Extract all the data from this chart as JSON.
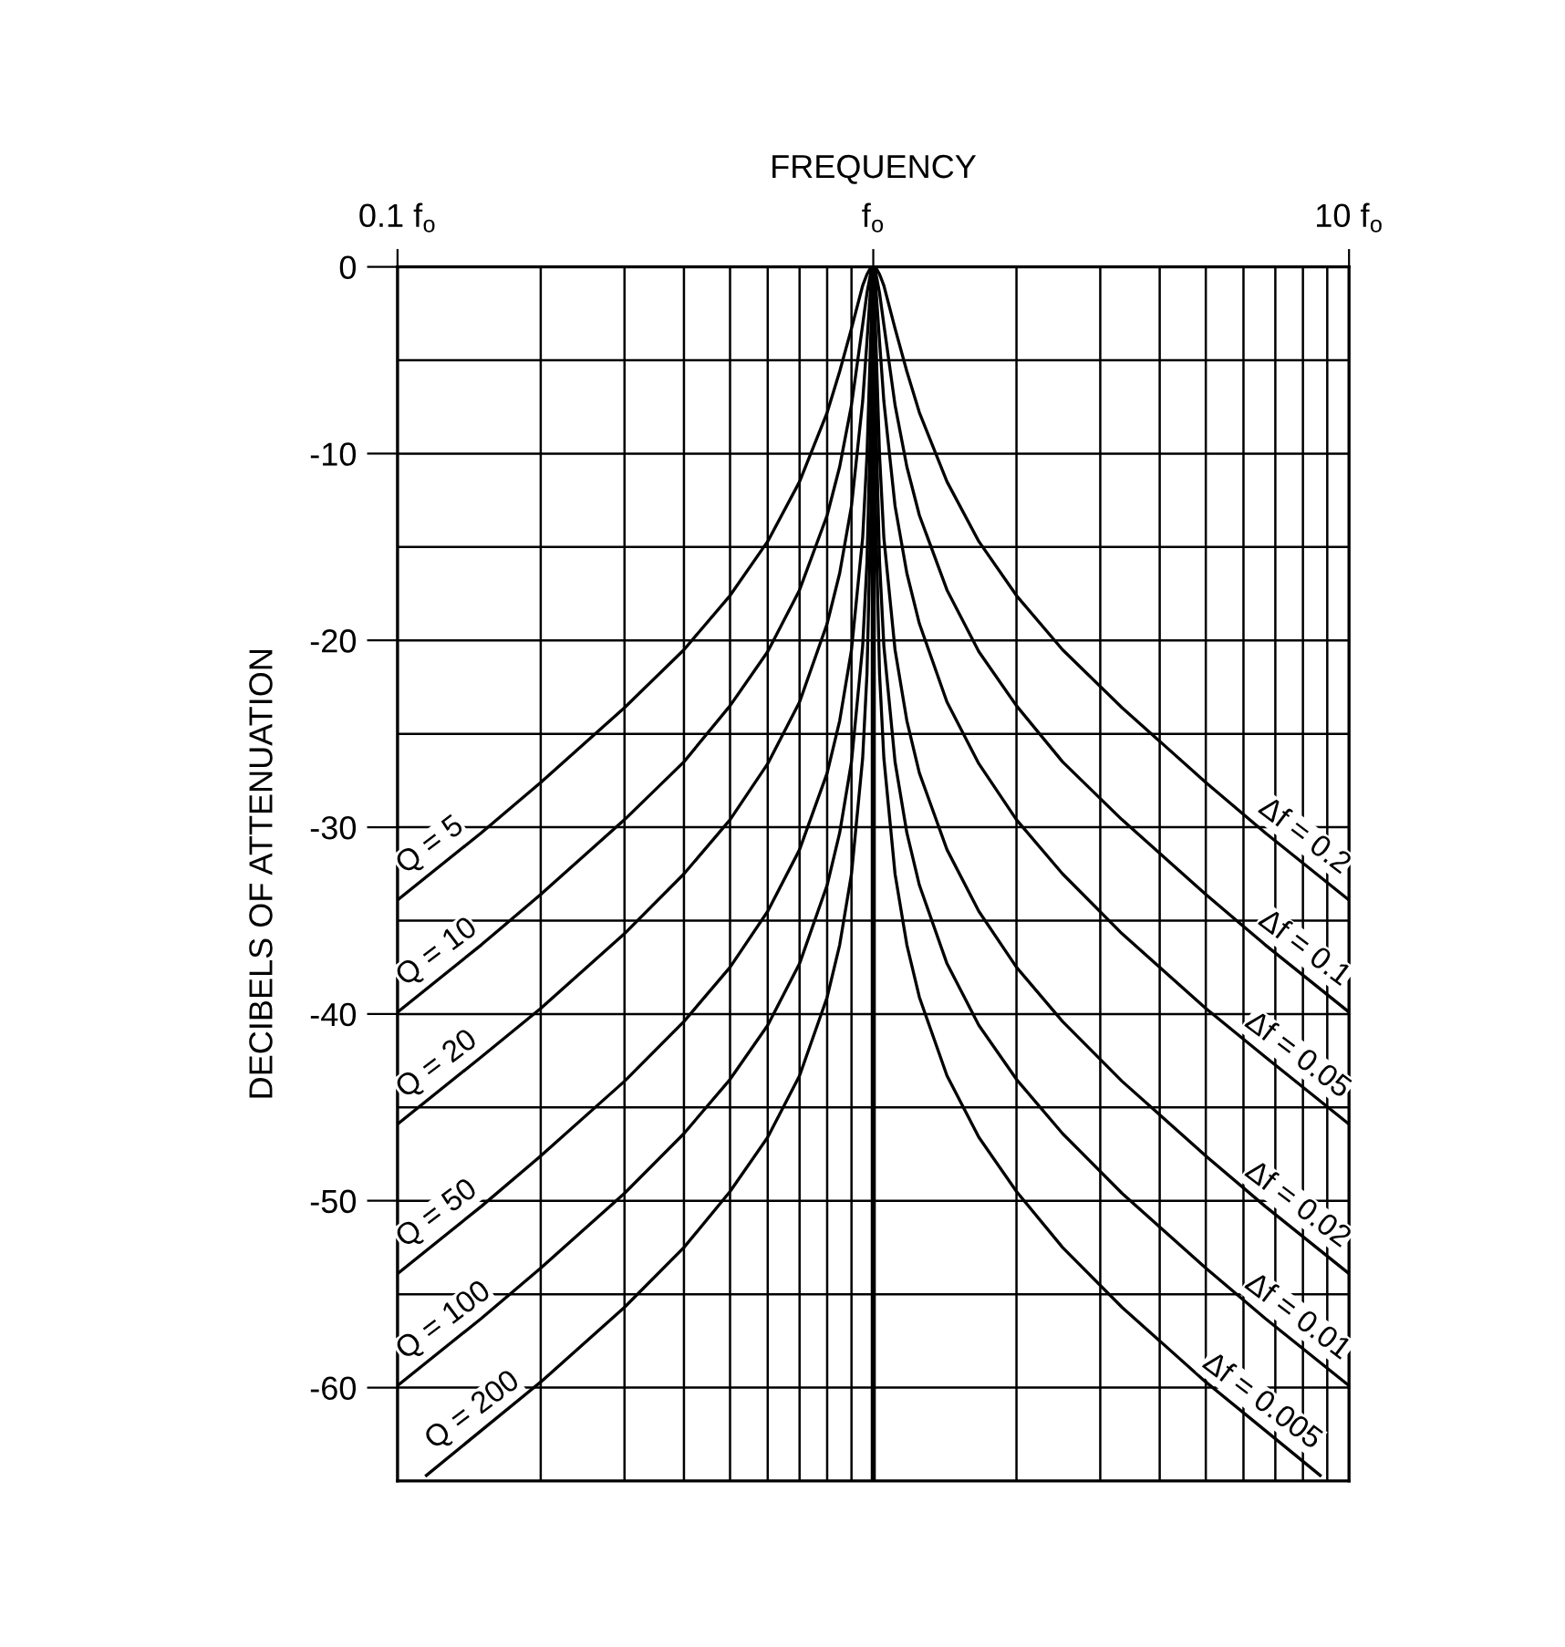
{
  "chart_data": {
    "type": "line",
    "xlabel": "FREQUENCY",
    "ylabel": "DECIBELS OF ATTENUATION",
    "log": "x",
    "xlim": [
      0.1,
      10
    ],
    "ylim": [
      -65,
      0
    ],
    "xticks": [
      {
        "value": 0.1,
        "label": "0.1 f$_{o}$"
      },
      {
        "value": 0.2,
        "label": null
      },
      {
        "value": 0.3,
        "label": null
      },
      {
        "value": 0.4,
        "label": null
      },
      {
        "value": 0.5,
        "label": null
      },
      {
        "value": 0.6,
        "label": null
      },
      {
        "value": 0.7,
        "label": null
      },
      {
        "value": 0.8,
        "label": null
      },
      {
        "value": 0.9,
        "label": null
      },
      {
        "value": 1,
        "label": "f$_{o}$"
      },
      {
        "value": 2,
        "label": null
      },
      {
        "value": 3,
        "label": null
      },
      {
        "value": 4,
        "label": null
      },
      {
        "value": 5,
        "label": null
      },
      {
        "value": 6,
        "label": null
      },
      {
        "value": 7,
        "label": null
      },
      {
        "value": 8,
        "label": null
      },
      {
        "value": 9,
        "label": null
      },
      {
        "value": 10,
        "label": "10 f$_{o}$"
      }
    ],
    "yticks": [
      0,
      {
        "value": -5,
        "label": null
      },
      -10,
      {
        "value": -15,
        "label": null
      },
      -20,
      {
        "value": -25,
        "label": null
      },
      -30,
      {
        "value": -35,
        "label": null
      },
      -40,
      {
        "value": -45,
        "label": null
      },
      -50,
      {
        "value": -55,
        "label": null
      },
      -60
    ],
    "grid": true,
    "ref_lines": [
      {
        "axis": "x",
        "value": 1,
        "label": null
      }
    ],
    "series": [
      {
        "color": "#000000",
        "x": [
          0.1,
          0.15,
          0.2,
          0.3,
          0.4,
          0.5,
          0.6,
          0.7,
          0.8,
          0.85,
          0.9,
          0.95,
          0.97,
          0.99,
          1,
          1.0101,
          1.0309,
          1.0526,
          1.1111,
          1.1765,
          1.25,
          1.4286,
          1.6667,
          2,
          2.5,
          3.333,
          5,
          6.667,
          10
        ],
        "values": [
          -33.9,
          -30.3,
          -27.6,
          -23.6,
          -20.5,
          -17.6,
          -14.7,
          -11.5,
          -7.8,
          -5.6,
          -3.3,
          -1.0,
          -0.4,
          0,
          0,
          0,
          -0.4,
          -1.0,
          -3.3,
          -5.6,
          -7.8,
          -11.5,
          -14.7,
          -17.6,
          -20.5,
          -23.6,
          -27.6,
          -30.3,
          -33.9
        ]
      },
      {
        "color": "#000000",
        "x": [
          0.1,
          0.15,
          0.2,
          0.3,
          0.4,
          0.5,
          0.6,
          0.7,
          0.8,
          0.85,
          0.9,
          0.95,
          0.97,
          0.99,
          1,
          1.0101,
          1.0309,
          1.0526,
          1.1111,
          1.1765,
          1.25,
          1.4286,
          1.6667,
          2,
          2.5,
          3.333,
          5,
          6.667,
          10
        ],
        "values": [
          -39.9,
          -36.3,
          -33.6,
          -29.6,
          -26.5,
          -23.5,
          -20.6,
          -17.3,
          -13.3,
          -10.7,
          -7.4,
          -3.1,
          -1.4,
          -0.2,
          0,
          -0.2,
          -1.4,
          -3.1,
          -7.4,
          -10.7,
          -13.3,
          -17.3,
          -20.6,
          -23.5,
          -26.5,
          -29.6,
          -33.6,
          -36.3,
          -39.9
        ]
      },
      {
        "color": "#000000",
        "x": [
          0.1,
          0.15,
          0.2,
          0.3,
          0.4,
          0.5,
          0.6,
          0.7,
          0.8,
          0.85,
          0.9,
          0.95,
          0.97,
          0.99,
          1,
          1.0101,
          1.0309,
          1.0526,
          1.1111,
          1.1765,
          1.25,
          1.4286,
          1.6667,
          2,
          2.5,
          3.333,
          5,
          6.667,
          10
        ],
        "values": [
          -45.9,
          -42.3,
          -39.7,
          -35.7,
          -32.5,
          -29.6,
          -26.6,
          -23.3,
          -19.1,
          -16.4,
          -12.8,
          -7.2,
          -4.0,
          -0.7,
          0,
          -0.7,
          -4.0,
          -7.2,
          -12.8,
          -16.4,
          -19.1,
          -23.3,
          -26.6,
          -29.6,
          -32.5,
          -35.7,
          -39.7,
          -42.3,
          -45.9
        ]
      },
      {
        "color": "#000000",
        "x": [
          0.1,
          0.15,
          0.2,
          0.3,
          0.4,
          0.5,
          0.6,
          0.7,
          0.8,
          0.85,
          0.9,
          0.95,
          0.97,
          0.99,
          1,
          1.0101,
          1.0309,
          1.0526,
          1.1111,
          1.1765,
          1.25,
          1.4286,
          1.6667,
          2,
          2.5,
          3.333,
          5,
          6.667,
          10
        ],
        "values": [
          -53.9,
          -50.3,
          -47.6,
          -43.6,
          -40.4,
          -37.5,
          -34.5,
          -31.2,
          -27.1,
          -24.3,
          -20.5,
          -14.5,
          -10.1,
          -3.0,
          0,
          -3.0,
          -10.1,
          -14.5,
          -20.5,
          -24.3,
          -27.1,
          -31.2,
          -34.5,
          -37.5,
          -40.4,
          -43.6,
          -47.6,
          -50.3,
          -53.9
        ]
      },
      {
        "color": "#000000",
        "x": [
          0.1,
          0.15,
          0.2,
          0.3,
          0.4,
          0.5,
          0.6,
          0.7,
          0.8,
          0.85,
          0.9,
          0.95,
          0.97,
          0.99,
          0.995,
          1,
          1.005,
          1.0101,
          1.0309,
          1.0526,
          1.1111,
          1.1765,
          1.25,
          1.4286,
          1.6667,
          2,
          2.5,
          3.333,
          5,
          6.667,
          10
        ],
        "values": [
          -59.9,
          -56.3,
          -53.6,
          -49.6,
          -46.4,
          -43.5,
          -40.6,
          -37.3,
          -33.1,
          -30.3,
          -26.5,
          -20.3,
          -15.8,
          -7.0,
          -3.0,
          0,
          -3.0,
          -7.0,
          -15.8,
          -20.3,
          -26.5,
          -30.3,
          -33.1,
          -37.3,
          -40.6,
          -43.5,
          -46.4,
          -49.6,
          -53.6,
          -56.3,
          -59.9
        ]
      },
      {
        "color": "#000000",
        "x": [
          0.115,
          0.15,
          0.2,
          0.3,
          0.4,
          0.5,
          0.6,
          0.7,
          0.8,
          0.85,
          0.9,
          0.95,
          0.97,
          0.99,
          0.995,
          0.998,
          1,
          1.002,
          1.005,
          1.0101,
          1.0309,
          1.0526,
          1.1111,
          1.1765,
          1.25,
          1.4286,
          1.6667,
          2,
          2.5,
          3.333,
          5,
          6.667,
          8.696
        ],
        "values": [
          -64.7,
          -62.3,
          -59.7,
          -55.7,
          -52.5,
          -49.5,
          -46.6,
          -43.3,
          -39.1,
          -36.3,
          -32.5,
          -26.3,
          -21.8,
          -12.4,
          -7.0,
          -2.2,
          0,
          -2.2,
          -7.0,
          -12.4,
          -21.8,
          -26.3,
          -32.5,
          -36.3,
          -39.1,
          -43.3,
          -46.6,
          -49.5,
          -52.5,
          -55.7,
          -59.7,
          -62.3,
          -64.7
        ]
      }
    ],
    "annotations": [
      {
        "text": "Q = 5",
        "x": 0.1,
        "y": -33.9
      },
      {
        "text": "Q = 10",
        "x": 0.1,
        "y": -39.9
      },
      {
        "text": "Q = 20",
        "x": 0.1,
        "y": -45.9
      },
      {
        "text": "Q = 50",
        "x": 0.1,
        "y": -53.9
      },
      {
        "text": "Q = 100",
        "x": 0.1,
        "y": -59.9
      },
      {
        "text": "Q = 200",
        "x": 0.115,
        "y": -64.7
      },
      {
        "text": "Δf = 0.2",
        "x": 10,
        "y": -33.9
      },
      {
        "text": "Δf = 0.1",
        "x": 10,
        "y": -39.9
      },
      {
        "text": "Δf = 0.05",
        "x": 10,
        "y": -45.9
      },
      {
        "text": "Δf = 0.02",
        "x": 10,
        "y": -53.9
      },
      {
        "text": "Δf = 0.01",
        "x": 10,
        "y": -59.9
      },
      {
        "text": "Δf = 0.005",
        "x": 8.696,
        "y": -64.7
      }
    ]
  }
}
